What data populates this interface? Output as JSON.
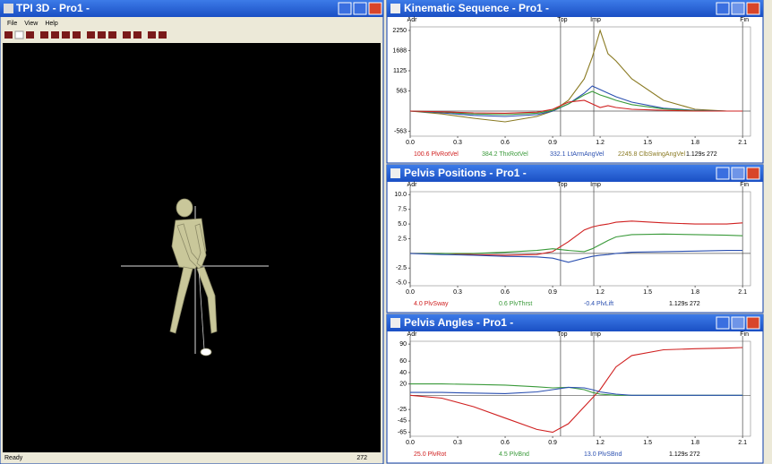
{
  "viewer": {
    "title": "TPI 3D - Pro1 -",
    "menu": [
      "File",
      "View",
      "Help"
    ],
    "status": "Ready",
    "frame": "272"
  },
  "charts": [
    {
      "title": "Kinematic Sequence  -  Pro1 -",
      "x": [
        0,
        0.2,
        0.4,
        0.6,
        0.8,
        0.9,
        1.0,
        1.1,
        1.15,
        1.2,
        1.25,
        1.3,
        1.4,
        1.6,
        1.8,
        2.0,
        2.1
      ],
      "xlim": [
        0,
        2.15
      ],
      "xticks": [
        {
          "value": 0,
          "label": "0.0"
        },
        {
          "value": 0.3,
          "label": "0.3"
        },
        {
          "value": 0.6,
          "label": "0.6"
        },
        {
          "value": 0.9,
          "label": "0.9"
        },
        {
          "value": 1.2,
          "label": "1.2"
        },
        {
          "value": 1.5,
          "label": "1.5"
        },
        {
          "value": 1.8,
          "label": "1.8"
        },
        {
          "value": 2.1,
          "label": "2.1"
        }
      ],
      "ylim": [
        -700,
        2350
      ],
      "yticks": [
        2250,
        1688,
        1125,
        563,
        -563
      ],
      "markers": [
        {
          "label": "Adr",
          "x": 0
        },
        {
          "label": "Top",
          "x": 0.95
        },
        {
          "label": "Imp",
          "x": 1.16
        },
        {
          "label": "Fin",
          "x": 2.1
        }
      ],
      "series": [
        {
          "color": "#8a7a22",
          "values": [
            0,
            -80,
            -200,
            -300,
            -150,
            0,
            300,
            900,
            1500,
            2250,
            1600,
            1400,
            900,
            300,
            50,
            0,
            0
          ]
        },
        {
          "color": "#2a4fb0",
          "values": [
            0,
            -50,
            -120,
            -150,
            -100,
            0,
            200,
            500,
            700,
            600,
            500,
            400,
            250,
            80,
            20,
            0,
            0
          ]
        },
        {
          "color": "#3a9a3a",
          "values": [
            0,
            -30,
            -80,
            -100,
            -60,
            20,
            200,
            450,
            550,
            450,
            380,
            300,
            180,
            60,
            10,
            0,
            0
          ]
        },
        {
          "color": "#d02020",
          "values": [
            0,
            -20,
            -50,
            -60,
            -30,
            50,
            250,
            300,
            200,
            100,
            150,
            100,
            50,
            20,
            0,
            0,
            0
          ]
        }
      ],
      "readouts": [
        {
          "text": "100.6 PlvRotVel",
          "color": "#d02020"
        },
        {
          "text": "384.2 ThxRotVel",
          "color": "#3a9a3a"
        },
        {
          "text": "332.1 LtArmAngVel",
          "color": "#2a4fb0"
        },
        {
          "text": "2245.8 ClbSwingAngVel",
          "color": "#8a7a22"
        },
        {
          "text": "1.129s  272",
          "color": "#000000"
        }
      ]
    },
    {
      "title": "Pelvis Positions  -  Pro1 -",
      "x": [
        0,
        0.2,
        0.4,
        0.6,
        0.8,
        0.9,
        1.0,
        1.1,
        1.15,
        1.2,
        1.25,
        1.3,
        1.4,
        1.6,
        1.8,
        2.0,
        2.1
      ],
      "xlim": [
        0,
        2.15
      ],
      "xticks": [
        {
          "value": 0,
          "label": "0.0"
        },
        {
          "value": 0.3,
          "label": "0.3"
        },
        {
          "value": 0.6,
          "label": "0.6"
        },
        {
          "value": 0.9,
          "label": "0.9"
        },
        {
          "value": 1.2,
          "label": "1.2"
        },
        {
          "value": 1.5,
          "label": "1.5"
        },
        {
          "value": 1.8,
          "label": "1.8"
        },
        {
          "value": 2.1,
          "label": "2.1"
        }
      ],
      "ylim": [
        -5.5,
        10.5
      ],
      "yticks": [
        {
          "value": 10,
          "label": "10.0"
        },
        7.5,
        {
          "value": 5,
          "label": "5.0"
        },
        2.5,
        -2.5,
        {
          "value": -5,
          "label": "-5.0"
        }
      ],
      "markers": [
        {
          "label": "Adr",
          "x": 0
        },
        {
          "label": "Top",
          "x": 0.95
        },
        {
          "label": "Imp",
          "x": 1.16
        },
        {
          "label": "Fin",
          "x": 2.1
        }
      ],
      "series": [
        {
          "color": "#d02020",
          "values": [
            0,
            0,
            -0.2,
            -0.3,
            -0.2,
            0.3,
            2,
            4,
            4.5,
            4.8,
            5,
            5.3,
            5.5,
            5.2,
            5,
            5,
            5.2
          ]
        },
        {
          "color": "#3a9a3a",
          "values": [
            0,
            0,
            0,
            0.2,
            0.5,
            0.8,
            0.5,
            0.3,
            0.8,
            1.5,
            2.2,
            2.8,
            3.2,
            3.3,
            3.2,
            3.1,
            3.0
          ]
        },
        {
          "color": "#2a4fb0",
          "values": [
            0,
            -0.2,
            -0.3,
            -0.5,
            -0.6,
            -0.8,
            -1.5,
            -0.8,
            -0.5,
            -0.3,
            -0.2,
            0,
            0.2,
            0.3,
            0.4,
            0.5,
            0.5
          ]
        }
      ],
      "readouts": [
        {
          "text": "4.0 PlvSway",
          "color": "#d02020"
        },
        {
          "text": "0.6 PlvThrst",
          "color": "#3a9a3a"
        },
        {
          "text": "-0.4 PlvLift",
          "color": "#2a4fb0"
        },
        {
          "text": "1.129s  272",
          "color": "#000000"
        }
      ]
    },
    {
      "title": "Pelvis Angles  -  Pro1 -",
      "x": [
        0,
        0.2,
        0.4,
        0.6,
        0.8,
        0.9,
        1.0,
        1.1,
        1.15,
        1.2,
        1.25,
        1.3,
        1.4,
        1.6,
        1.8,
        2.0,
        2.1
      ],
      "xlim": [
        0,
        2.15
      ],
      "xticks": [
        {
          "value": 0,
          "label": "0.0"
        },
        {
          "value": 0.3,
          "label": "0.3"
        },
        {
          "value": 0.6,
          "label": "0.6"
        },
        {
          "value": 0.9,
          "label": "0.9"
        },
        {
          "value": 1.2,
          "label": "1.2"
        },
        {
          "value": 1.5,
          "label": "1.5"
        },
        {
          "value": 1.8,
          "label": "1.8"
        },
        {
          "value": 2.1,
          "label": "2.1"
        }
      ],
      "ylim": [
        -72,
        95
      ],
      "yticks": [
        90,
        60,
        40,
        20,
        -25,
        -45,
        -65
      ],
      "markers": [
        {
          "label": "Adr",
          "x": 0
        },
        {
          "label": "Top",
          "x": 0.95
        },
        {
          "label": "Imp",
          "x": 1.16
        },
        {
          "label": "Fin",
          "x": 2.1
        }
      ],
      "series": [
        {
          "color": "#d02020",
          "values": [
            0,
            -5,
            -20,
            -40,
            -60,
            -65,
            -50,
            -20,
            -5,
            10,
            30,
            50,
            70,
            80,
            82,
            83,
            84
          ]
        },
        {
          "color": "#3a9a3a",
          "values": [
            20,
            20,
            19,
            18,
            15,
            13,
            14,
            10,
            5,
            2,
            1,
            0,
            0,
            0,
            0,
            0,
            0
          ]
        },
        {
          "color": "#2a4fb0",
          "values": [
            5,
            5,
            4,
            3,
            6,
            10,
            14,
            13,
            10,
            6,
            4,
            2,
            0,
            0,
            0,
            0,
            0
          ]
        }
      ],
      "readouts": [
        {
          "text": "25.0 PlvRot",
          "color": "#d02020"
        },
        {
          "text": "4.5 PlvBnd",
          "color": "#3a9a3a"
        },
        {
          "text": "13.0 PlvSBnd",
          "color": "#2a4fb0"
        },
        {
          "text": "1.129s  272",
          "color": "#000000"
        }
      ]
    }
  ]
}
